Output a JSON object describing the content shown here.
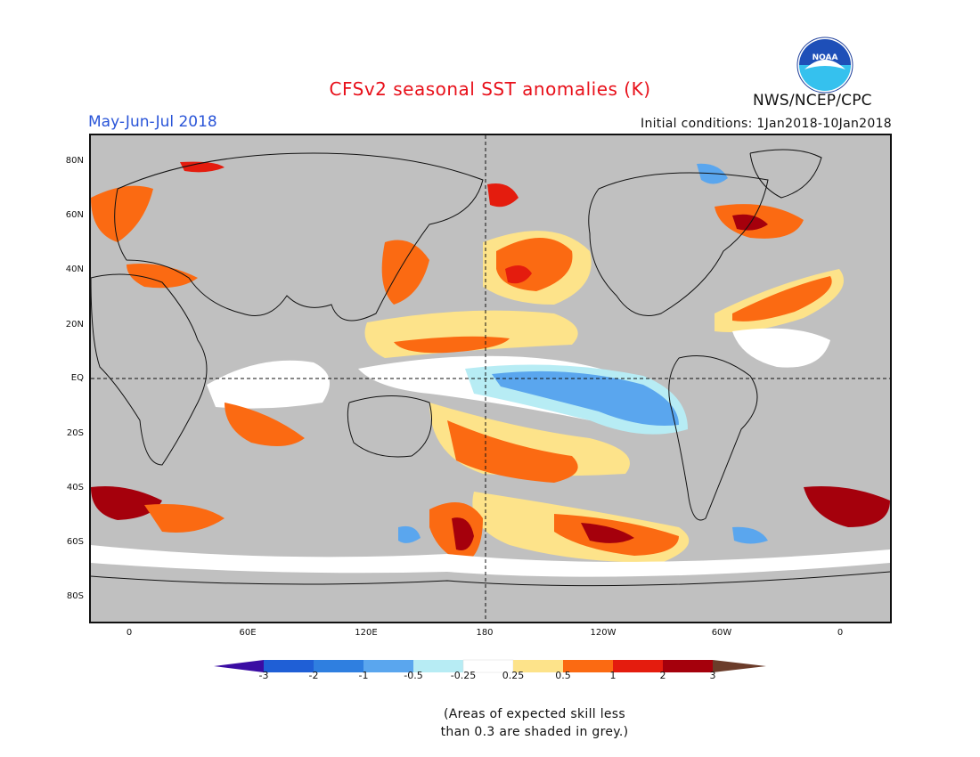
{
  "header": {
    "title": "CFSv2 seasonal SST anomalies (K)",
    "period": "May-Jun-Jul 2018",
    "initial_conditions": "Initial conditions: 1Jan2018-10Jan2018",
    "agency": "NWS/NCEP/CPC",
    "logo_text": "NOAA"
  },
  "map": {
    "lat_labels": [
      "80N",
      "60N",
      "40N",
      "20N",
      "EQ",
      "20S",
      "40S",
      "60S",
      "80S"
    ],
    "lon_labels": [
      "0",
      "60E",
      "120E",
      "180",
      "120W",
      "60W",
      "0"
    ],
    "no_skill_color": "#c0c0c0"
  },
  "colorbar": {
    "ticks": [
      "-3",
      "-2",
      "-1",
      "-0.5",
      "-0.25",
      "0.25",
      "0.5",
      "1",
      "2",
      "3"
    ],
    "colors": [
      "#3a0ca3",
      "#1f5fd6",
      "#2f7fe0",
      "#5aa6ee",
      "#b7ecf4",
      "#ffffff",
      "#fde38a",
      "#fb6a12",
      "#e41c0e",
      "#a5000c",
      "#6b3c2a"
    ]
  },
  "note": {
    "line1": "(Areas of expected skill less",
    "line2": "than 0.3 are shaded in grey.)"
  }
}
